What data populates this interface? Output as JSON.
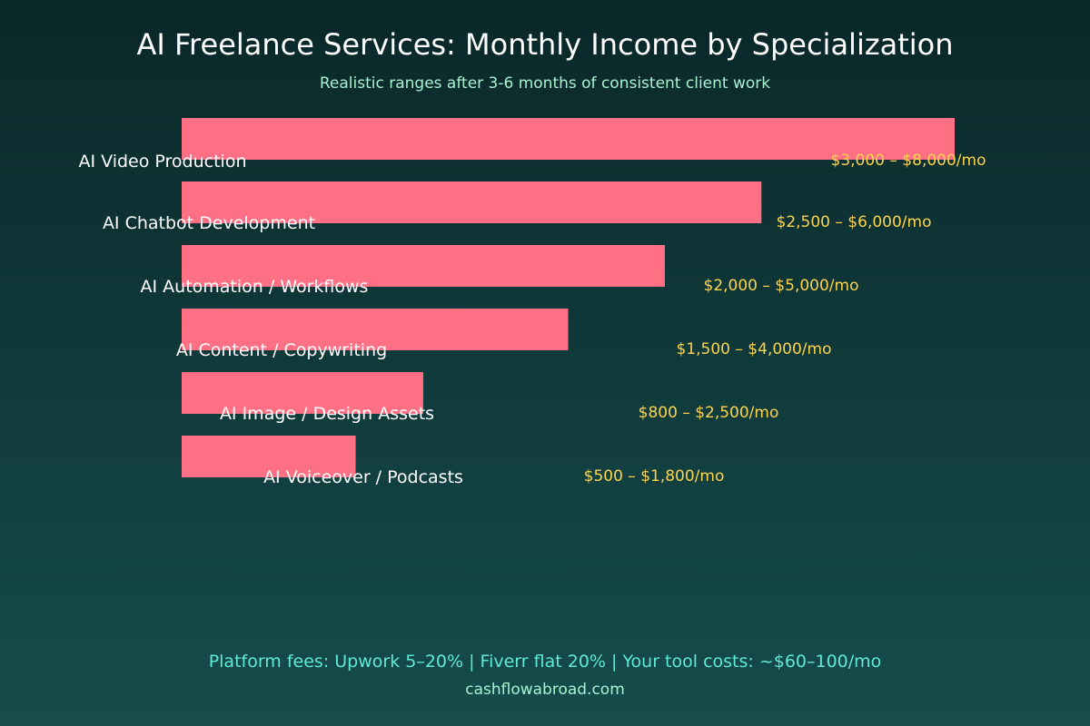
{
  "chart_data": {
    "type": "bar",
    "orientation": "horizontal",
    "title": "AI Freelance Services: Monthly Income by Specialization",
    "subtitle": "Realistic ranges after 3-6 months of consistent client work",
    "categories": [
      "AI Video Production",
      "AI Chatbot Development",
      "AI Automation / Workflows",
      "AI Content / Copywriting",
      "AI Image / Design Assets",
      "AI Voiceover / Podcasts"
    ],
    "value_labels": [
      "$3,000 – $8,000/mo",
      "$2,500 – $6,000/mo",
      "$2,000 – $5,000/mo",
      "$1,500 – $4,000/mo",
      "$800 – $2,500/mo",
      "$500 – $1,800/mo"
    ],
    "values": [
      8000,
      6000,
      5000,
      4000,
      2500,
      1800
    ],
    "series": [
      {
        "values": [
          8000,
          6000,
          5000,
          4000,
          2500,
          1800
        ]
      }
    ],
    "xlim": [
      0,
      8000
    ],
    "grid": false,
    "legend": "none"
  },
  "footer": {
    "note": "Platform fees: Upwork 5–20% | Fiverr flat 20% | Your tool costs: ~$60–100/mo",
    "source": "cashflowabroad.com"
  },
  "colors": {
    "bg_top": "#0a2729",
    "bg_bottom": "#164c4c",
    "bar": "#ff7085",
    "title": "#ffffff",
    "subtitle": "#a7f3d0",
    "label": "#ffffff",
    "value": "#fcd34d",
    "note": "#5eead4",
    "source": "#a7f3d0"
  }
}
